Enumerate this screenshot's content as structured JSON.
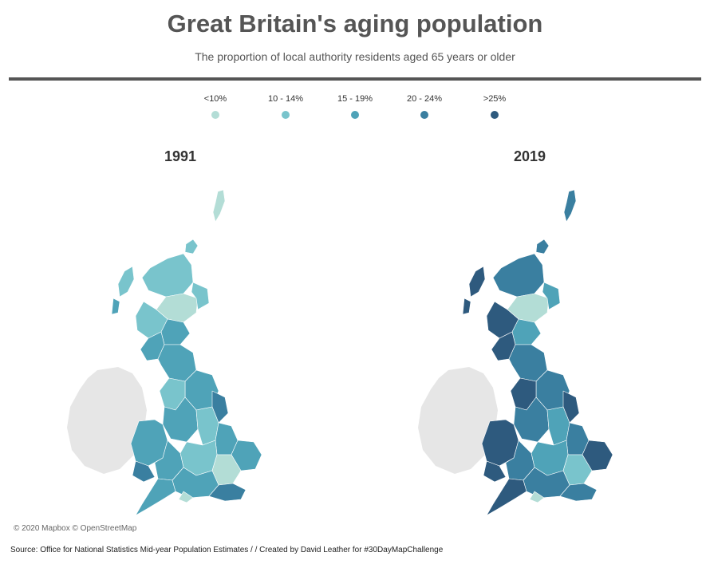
{
  "title": "Great Britain's aging population",
  "subtitle": "The proportion of local authority residents aged 65 years or older",
  "legend": [
    {
      "label": "<10%",
      "color": "#b3ddd6"
    },
    {
      "label": "10 - 14%",
      "color": "#79c4cc"
    },
    {
      "label": "15 - 19%",
      "color": "#4fa3b8"
    },
    {
      "label": "20 - 24%",
      "color": "#3a7fa0"
    },
    {
      "label": ">25%",
      "color": "#2e5a7e"
    }
  ],
  "maps": [
    {
      "year": "1991",
      "dominant_bracket": "10 - 14%"
    },
    {
      "year": "2019",
      "dominant_bracket": "20 - 24%"
    }
  ],
  "attribution": "© 2020 Mapbox © OpenStreetMap",
  "source": "Source: Office for National Statistics Mid-year Population Estimates / / Created by David Leather for #30DayMapChallenge",
  "colors": {
    "ireland": "#e6e6e6",
    "rule": "#555555"
  }
}
